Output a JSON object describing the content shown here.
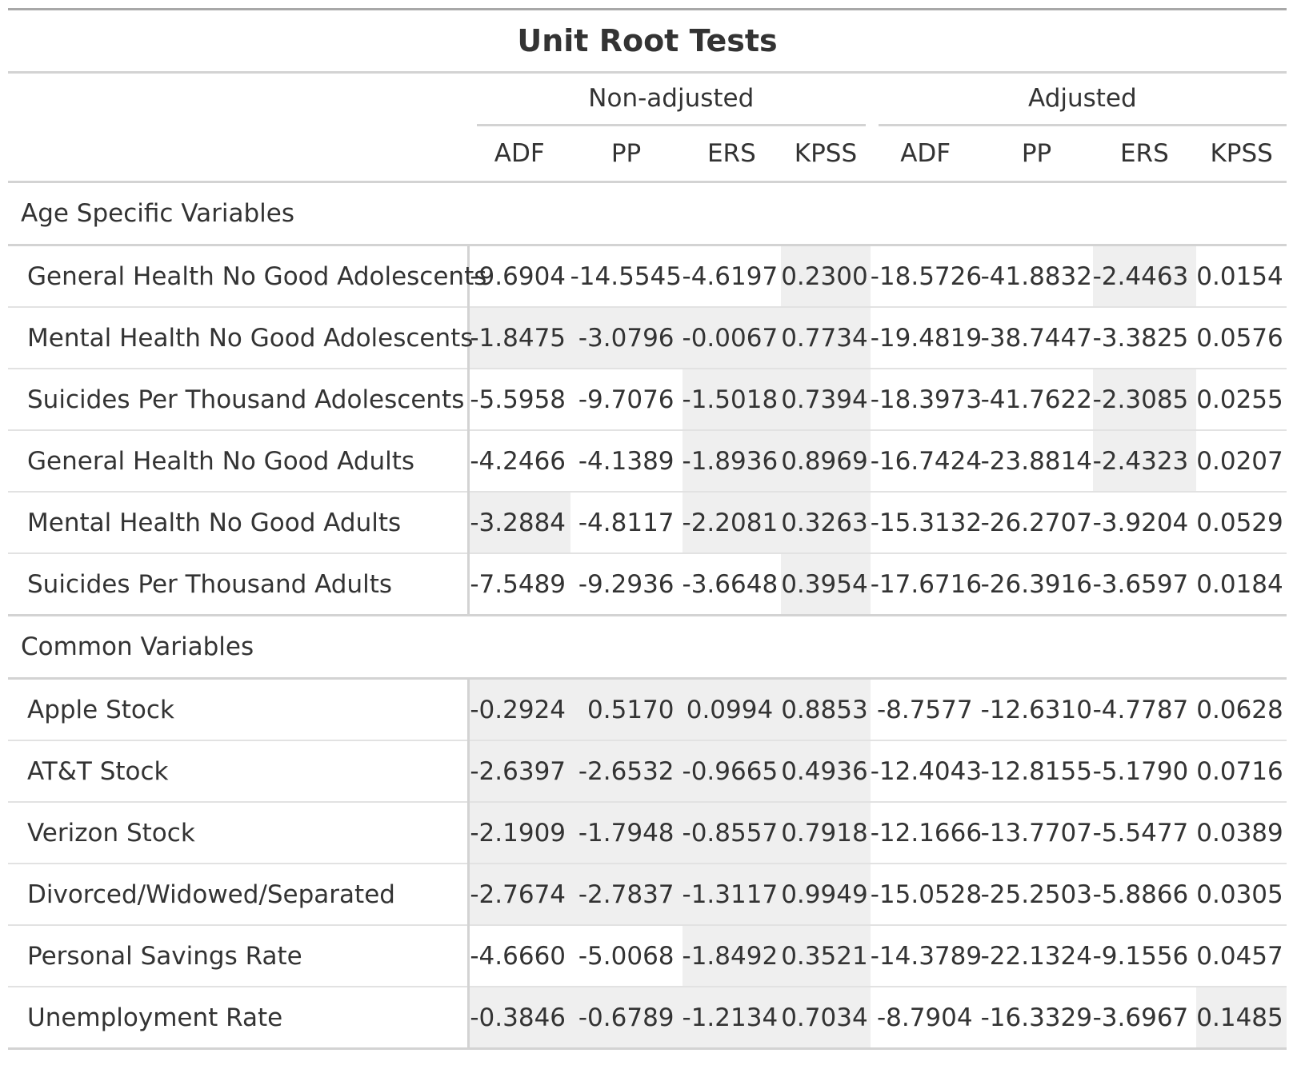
{
  "title": "Unit Root Tests",
  "spanners": [
    "Non-adjusted",
    "Adjusted"
  ],
  "columns": [
    "ADF",
    "PP",
    "ERS",
    "KPSS",
    "ADF",
    "PP",
    "ERS",
    "KPSS"
  ],
  "groups": [
    {
      "label": "Age Specific Variables",
      "rows": [
        {
          "label": "General Health No Good Adolescents",
          "values": [
            "-9.6904",
            "-14.5545",
            "-4.6197",
            "0.2300",
            "-18.5726",
            "-41.8832",
            "-2.4463",
            "0.0154"
          ],
          "highlight": [
            false,
            false,
            false,
            true,
            false,
            false,
            true,
            false
          ]
        },
        {
          "label": "Mental Health No Good Adolescents",
          "values": [
            "-1.8475",
            "-3.0796",
            "-0.0067",
            "0.7734",
            "-19.4819",
            "-38.7447",
            "-3.3825",
            "0.0576"
          ],
          "highlight": [
            true,
            true,
            true,
            true,
            false,
            false,
            false,
            false
          ]
        },
        {
          "label": "Suicides Per Thousand Adolescents",
          "values": [
            "-5.5958",
            "-9.7076",
            "-1.5018",
            "0.7394",
            "-18.3973",
            "-41.7622",
            "-2.3085",
            "0.0255"
          ],
          "highlight": [
            false,
            false,
            true,
            true,
            false,
            false,
            true,
            false
          ]
        },
        {
          "label": "General Health No Good Adults",
          "values": [
            "-4.2466",
            "-4.1389",
            "-1.8936",
            "0.8969",
            "-16.7424",
            "-23.8814",
            "-2.4323",
            "0.0207"
          ],
          "highlight": [
            false,
            false,
            true,
            true,
            false,
            false,
            true,
            false
          ]
        },
        {
          "label": "Mental Health No Good Adults",
          "values": [
            "-3.2884",
            "-4.8117",
            "-2.2081",
            "0.3263",
            "-15.3132",
            "-26.2707",
            "-3.9204",
            "0.0529"
          ],
          "highlight": [
            true,
            false,
            true,
            true,
            false,
            false,
            false,
            false
          ]
        },
        {
          "label": "Suicides Per Thousand Adults",
          "values": [
            "-7.5489",
            "-9.2936",
            "-3.6648",
            "0.3954",
            "-17.6716",
            "-26.3916",
            "-3.6597",
            "0.0184"
          ],
          "highlight": [
            false,
            false,
            false,
            true,
            false,
            false,
            false,
            false
          ]
        }
      ]
    },
    {
      "label": "Common Variables",
      "rows": [
        {
          "label": "Apple Stock",
          "values": [
            "-0.2924",
            "0.5170",
            "0.0994",
            "0.8853",
            "-8.7577",
            "-12.6310",
            "-4.7787",
            "0.0628"
          ],
          "highlight": [
            true,
            true,
            true,
            true,
            false,
            false,
            false,
            false
          ]
        },
        {
          "label": "AT&T Stock",
          "values": [
            "-2.6397",
            "-2.6532",
            "-0.9665",
            "0.4936",
            "-12.4043",
            "-12.8155",
            "-5.1790",
            "0.0716"
          ],
          "highlight": [
            true,
            true,
            true,
            true,
            false,
            false,
            false,
            false
          ]
        },
        {
          "label": "Verizon Stock",
          "values": [
            "-2.1909",
            "-1.7948",
            "-0.8557",
            "0.7918",
            "-12.1666",
            "-13.7707",
            "-5.5477",
            "0.0389"
          ],
          "highlight": [
            true,
            true,
            true,
            true,
            false,
            false,
            false,
            false
          ]
        },
        {
          "label": "Divorced/Widowed/Separated",
          "values": [
            "-2.7674",
            "-2.7837",
            "-1.3117",
            "0.9949",
            "-15.0528",
            "-25.2503",
            "-5.8866",
            "0.0305"
          ],
          "highlight": [
            true,
            true,
            true,
            true,
            false,
            false,
            false,
            false
          ]
        },
        {
          "label": "Personal Savings Rate",
          "values": [
            "-4.6660",
            "-5.0068",
            "-1.8492",
            "0.3521",
            "-14.3789",
            "-22.1324",
            "-9.1556",
            "0.0457"
          ],
          "highlight": [
            false,
            false,
            true,
            true,
            false,
            false,
            false,
            false
          ]
        },
        {
          "label": "Unemployment Rate",
          "values": [
            "-0.3846",
            "-0.6789",
            "-1.2134",
            "0.7034",
            "-8.7904",
            "-16.3329",
            "-3.6967",
            "0.1485"
          ],
          "highlight": [
            true,
            true,
            true,
            true,
            false,
            false,
            false,
            true
          ]
        }
      ]
    }
  ],
  "colors": {
    "highlight": "#efefef",
    "rule": "#d3d3d3",
    "text": "#333333"
  }
}
